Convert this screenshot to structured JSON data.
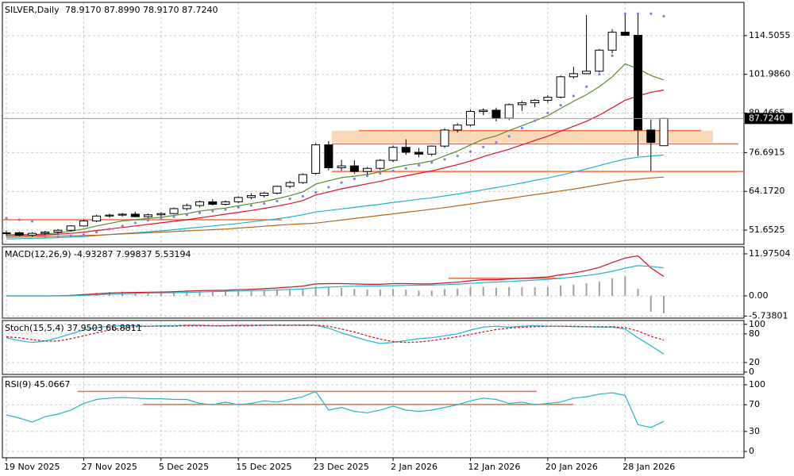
{
  "chart_data": [
    {
      "type": "candlestick",
      "title": "SILVER,Daily",
      "ohlc_text": "78.9170 87.8990 78.9170 87.7240",
      "categories": [
        "19 Nov 2025",
        null,
        null,
        null,
        null,
        null,
        "27 Nov 2025",
        null,
        null,
        null,
        null,
        null,
        "5 Dec 2025",
        null,
        null,
        null,
        null,
        null,
        "15 Dec 2025",
        null,
        null,
        null,
        null,
        null,
        "23 Dec 2025",
        null,
        null,
        null,
        null,
        null,
        "2 Jan 2026",
        null,
        null,
        null,
        null,
        null,
        "12 Jan 2026",
        null,
        null,
        null,
        null,
        null,
        "20 Jan 2026",
        null,
        null,
        null,
        null,
        null,
        "28 Jan 2026",
        null,
        null,
        null
      ],
      "open": [
        50.5,
        50.8,
        50.0,
        50.6,
        51.0,
        51.6,
        53.0,
        54.6,
        56.2,
        56.5,
        56.8,
        56.0,
        56.6,
        57.0,
        58.6,
        59.6,
        60.8,
        60.0,
        60.8,
        62.2,
        62.8,
        63.6,
        65.8,
        67.0,
        70.0,
        79.2,
        71.8,
        72.4,
        70.6,
        71.6,
        74.2,
        78.4,
        76.8,
        76.2,
        78.8,
        84.0,
        85.6,
        90.0,
        90.4,
        87.8,
        92.2,
        92.8,
        93.6,
        94.6,
        101.2,
        102.2,
        103.0,
        109.8,
        115.6,
        114.6,
        84.0,
        78.917
      ],
      "high": [
        51.5,
        51.2,
        51.0,
        51.4,
        52.0,
        53.2,
        55.0,
        56.6,
        57.0,
        57.2,
        57.6,
        57.0,
        57.4,
        59.0,
        60.2,
        61.2,
        61.6,
        61.2,
        62.6,
        63.6,
        64.0,
        66.0,
        67.6,
        70.0,
        79.8,
        80.4,
        74.4,
        74.2,
        72.0,
        74.6,
        79.0,
        81.0,
        78.2,
        79.0,
        84.6,
        86.2,
        90.6,
        91.0,
        91.2,
        92.6,
        93.4,
        94.0,
        95.2,
        101.6,
        104.4,
        121.2,
        110.2,
        116.6,
        121.4,
        121.6,
        87.4,
        87.899
      ],
      "low": [
        49.8,
        49.6,
        49.5,
        50.2,
        50.5,
        51.2,
        52.8,
        54.2,
        55.6,
        56.0,
        55.8,
        55.6,
        56.0,
        56.8,
        58.0,
        59.0,
        59.6,
        59.6,
        60.4,
        61.6,
        62.2,
        63.2,
        65.2,
        66.6,
        69.6,
        71.0,
        70.8,
        69.8,
        69.6,
        71.0,
        73.6,
        76.0,
        75.2,
        75.6,
        78.2,
        83.2,
        85.2,
        88.8,
        86.8,
        87.2,
        90.2,
        91.4,
        92.8,
        94.2,
        100.6,
        102.0,
        102.6,
        108.8,
        114.4,
        75.6,
        70.8,
        78.917
      ],
      "close": [
        50.8,
        50.0,
        50.6,
        51.0,
        51.6,
        53.0,
        54.6,
        56.2,
        56.5,
        56.8,
        56.0,
        56.6,
        57.0,
        58.6,
        59.6,
        60.8,
        60.0,
        60.8,
        62.2,
        62.8,
        63.6,
        65.8,
        67.0,
        69.6,
        79.2,
        71.8,
        72.4,
        70.6,
        71.6,
        74.2,
        78.4,
        76.8,
        76.2,
        78.8,
        84.0,
        85.6,
        90.0,
        90.4,
        87.8,
        92.2,
        92.8,
        93.6,
        94.6,
        101.2,
        102.2,
        103.0,
        109.8,
        115.6,
        114.6,
        84.0,
        80.0,
        87.724
      ],
      "up_color": "#ffffff",
      "down_color": "#000000",
      "lines": [
        {
          "color": "#5b8c2a",
          "values": [
            50.2,
            50.2,
            50.2,
            50.4,
            50.7,
            51.3,
            52.0,
            53.0,
            53.8,
            54.6,
            55.0,
            55.4,
            55.8,
            56.4,
            57.0,
            57.8,
            58.3,
            58.8,
            59.5,
            60.2,
            60.9,
            61.8,
            62.8,
            64.0,
            66.5,
            67.6,
            68.6,
            69.1,
            69.6,
            70.5,
            71.8,
            72.6,
            73.2,
            74.0,
            75.6,
            77.2,
            79.2,
            81.0,
            82.1,
            83.8,
            85.4,
            87.0,
            88.6,
            91.0,
            93.3,
            95.4,
            98.0,
            101.2,
            105.4,
            103.8,
            101.6,
            100.2
          ]
        },
        {
          "color": "#e0102a",
          "values": [
            49.8,
            49.9,
            50.0,
            50.1,
            50.3,
            50.6,
            51.0,
            51.5,
            52.0,
            52.5,
            53.0,
            53.5,
            54.0,
            54.5,
            55.0,
            55.6,
            56.2,
            56.8,
            57.4,
            58.0,
            58.7,
            59.4,
            60.2,
            61.2,
            63.0,
            64.0,
            65.0,
            65.8,
            66.6,
            67.4,
            68.4,
            69.2,
            70.0,
            70.8,
            71.8,
            72.8,
            74.0,
            75.4,
            76.6,
            77.8,
            79.2,
            80.6,
            82.0,
            83.6,
            85.2,
            86.8,
            88.8,
            91.2,
            93.6,
            95.0,
            96.2,
            96.9
          ]
        },
        {
          "color": "#1fb5c8",
          "values": [
            48.8,
            48.9,
            49.0,
            49.1,
            49.2,
            49.4,
            49.6,
            49.9,
            50.2,
            50.5,
            50.8,
            51.1,
            51.4,
            51.8,
            52.2,
            52.6,
            53.0,
            53.4,
            53.8,
            54.3,
            54.8,
            55.3,
            55.9,
            56.6,
            57.5,
            58.0,
            58.5,
            59.0,
            59.5,
            60.0,
            60.6,
            61.1,
            61.6,
            62.1,
            62.7,
            63.3,
            64.0,
            64.7,
            65.4,
            66.1,
            66.9,
            67.7,
            68.5,
            69.4,
            70.4,
            71.4,
            72.5,
            73.6,
            74.6,
            75.2,
            75.6,
            75.9
          ]
        },
        {
          "color": "#b5651d",
          "values": [
            49.3,
            49.4,
            49.5,
            49.6,
            49.7,
            49.8,
            49.9,
            50.0,
            50.2,
            50.4,
            50.6,
            50.8,
            51.0,
            51.2,
            51.4,
            51.6,
            51.8,
            52.0,
            52.3,
            52.6,
            52.9,
            53.2,
            53.5,
            53.7,
            53.9,
            54.4,
            54.9,
            55.4,
            55.9,
            56.4,
            56.9,
            57.4,
            57.9,
            58.4,
            58.9,
            59.5,
            60.1,
            60.7,
            61.3,
            61.9,
            62.5,
            63.1,
            63.7,
            64.3,
            64.9,
            65.6,
            66.3,
            67.0,
            67.7,
            68.1,
            68.5,
            68.8
          ]
        }
      ],
      "sar": {
        "color": "#8a7fd6",
        "values": [
          55.5,
          55.0,
          54.5,
          49.5,
          49.6,
          49.8,
          50.2,
          51.0,
          52.0,
          53.0,
          54.0,
          54.8,
          55.4,
          56.0,
          56.6,
          57.2,
          57.8,
          58.3,
          59.0,
          59.6,
          60.2,
          61.0,
          61.8,
          62.6,
          63.8,
          65.5,
          67.0,
          68.2,
          69.2,
          70.0,
          70.8,
          71.6,
          72.6,
          73.5,
          74.5,
          75.6,
          77.0,
          78.5,
          80.0,
          82.0,
          84.6,
          87.0,
          89.5,
          92.0,
          95.0,
          98.0,
          102.0,
          108.0,
          121.6,
          121.6,
          121.6,
          120.8
        ]
      },
      "levels": [
        {
          "value": 55.0,
          "color": "#ff6a3d"
        },
        {
          "value": 83.8,
          "color": "#ff6a3d"
        },
        {
          "value": 79.5,
          "color": "#ff6a3d"
        },
        {
          "value": 70.6,
          "color": "#ff6a3d"
        }
      ],
      "zone": {
        "values": [
          80.0,
          83.8
        ],
        "color": "#f8cfa6"
      },
      "last_price": {
        "value": 87.724,
        "label": "87.7240"
      },
      "ylim": [
        47.05,
        125.24
      ],
      "yticks": [
        51.6525,
        {
          "value": 64.172,
          "label": "64.1720"
        },
        76.6915,
        89.4665,
        {
          "value": 101.986,
          "label": "101.9860"
        },
        114.5055
      ],
      "grid": true
    },
    {
      "type": "macd",
      "title": "MACD(12,26,9) -4.93287 7.99837 5.53194",
      "histogram": {
        "color": "#a0a0a0",
        "values": [
          0,
          0,
          0,
          0,
          0.1,
          0.3,
          0.6,
          0.9,
          1.1,
          1.2,
          1.1,
          1.1,
          1.1,
          1.2,
          1.3,
          1.4,
          1.3,
          1.3,
          1.4,
          1.4,
          1.5,
          1.6,
          1.8,
          2.0,
          2.6,
          2.5,
          2.3,
          2.0,
          1.8,
          1.8,
          2.0,
          1.8,
          1.5,
          1.5,
          1.9,
          2.1,
          2.5,
          2.6,
          2.3,
          2.5,
          2.5,
          2.5,
          2.5,
          3.0,
          3.2,
          3.6,
          4.1,
          5.0,
          5.5,
          2.0,
          -4.5,
          -4.93287
        ]
      },
      "series": [
        {
          "color": "#d01020",
          "values": [
            0,
            0,
            0,
            0,
            0.05,
            0.15,
            0.35,
            0.6,
            0.8,
            0.95,
            1.0,
            1.05,
            1.1,
            1.2,
            1.35,
            1.5,
            1.55,
            1.6,
            1.75,
            1.9,
            2.05,
            2.25,
            2.5,
            2.8,
            3.4,
            3.5,
            3.5,
            3.4,
            3.3,
            3.3,
            3.5,
            3.5,
            3.4,
            3.4,
            3.7,
            3.9,
            4.3,
            4.6,
            4.6,
            4.8,
            5.0,
            5.2,
            5.4,
            6.0,
            6.5,
            7.2,
            8.1,
            9.5,
            10.8,
            11.4,
            8.0,
            5.53194
          ]
        },
        {
          "color": "#1fb5c8",
          "values": [
            0,
            0,
            0,
            0,
            0,
            0.05,
            0.15,
            0.3,
            0.45,
            0.6,
            0.7,
            0.8,
            0.85,
            0.9,
            1.0,
            1.1,
            1.2,
            1.3,
            1.4,
            1.5,
            1.6,
            1.7,
            1.85,
            2.0,
            2.3,
            2.5,
            2.65,
            2.75,
            2.8,
            2.85,
            2.9,
            3.0,
            3.05,
            3.1,
            3.2,
            3.35,
            3.55,
            3.8,
            3.95,
            4.1,
            4.3,
            4.5,
            4.7,
            5.0,
            5.4,
            5.8,
            6.3,
            7.0,
            7.9,
            8.6,
            8.4,
            7.99837
          ]
        }
      ],
      "levels": [
        {
          "value": 5.0,
          "color": "#ff6a3d"
        }
      ],
      "ylim": [
        -6.33,
        14.0
      ],
      "yticks": [
        -5.73801,
        {
          "value": 0,
          "label": "0.00"
        },
        11.97504
      ],
      "grid": true
    },
    {
      "type": "stochastic",
      "title": "Stoch(15,5,4) 37.9503 66.8811",
      "series": [
        {
          "color": "#1fb5c8",
          "values": [
            72,
            66,
            62,
            65,
            72,
            80,
            88,
            93,
            96,
            97,
            97,
            96,
            97,
            97,
            98,
            98,
            97,
            97,
            98,
            98,
            98,
            98,
            98,
            98,
            98,
            92,
            82,
            74,
            66,
            60,
            62,
            66,
            70,
            72,
            76,
            80,
            88,
            94,
            96,
            94,
            96,
            97,
            96,
            96,
            95,
            95,
            94,
            94,
            90,
            72,
            55,
            37.9503
          ]
        },
        {
          "color": "#d01020",
          "dashed": true,
          "values": [
            74,
            72,
            68,
            65,
            65,
            70,
            76,
            82,
            88,
            92,
            95,
            96,
            96,
            96,
            97,
            97,
            97,
            97,
            97,
            97,
            98,
            98,
            98,
            98,
            98,
            96,
            90,
            84,
            76,
            69,
            64,
            62,
            63,
            66,
            70,
            74,
            79,
            84,
            89,
            92,
            94,
            95,
            96,
            96,
            96,
            95,
            95,
            95,
            93,
            86,
            75,
            66.8811
          ]
        }
      ],
      "ylim": [
        -5,
        108
      ],
      "yticks": [
        0,
        20,
        80,
        100
      ],
      "grid": true
    },
    {
      "type": "rsi",
      "title": "RSI(9) 45.0667",
      "series": [
        {
          "color": "#1fb5c8",
          "values": [
            55,
            50,
            44,
            52,
            56,
            62,
            72,
            78,
            80,
            81,
            80,
            79,
            79,
            78,
            78,
            72,
            70,
            74,
            70,
            72,
            76,
            74,
            78,
            82,
            90,
            62,
            66,
            60,
            58,
            62,
            68,
            62,
            60,
            62,
            66,
            70,
            76,
            80,
            78,
            72,
            74,
            70,
            72,
            74,
            80,
            82,
            86,
            88,
            84,
            40,
            36,
            45.0667
          ]
        }
      ],
      "levels": [
        {
          "value": 90,
          "color": "#ff6a3d"
        },
        {
          "value": 70.5,
          "color": "#ff6a3d"
        }
      ],
      "ylim": [
        -9.5,
        111.9
      ],
      "yticks": [
        0,
        30,
        70,
        100
      ],
      "grid": true
    }
  ]
}
